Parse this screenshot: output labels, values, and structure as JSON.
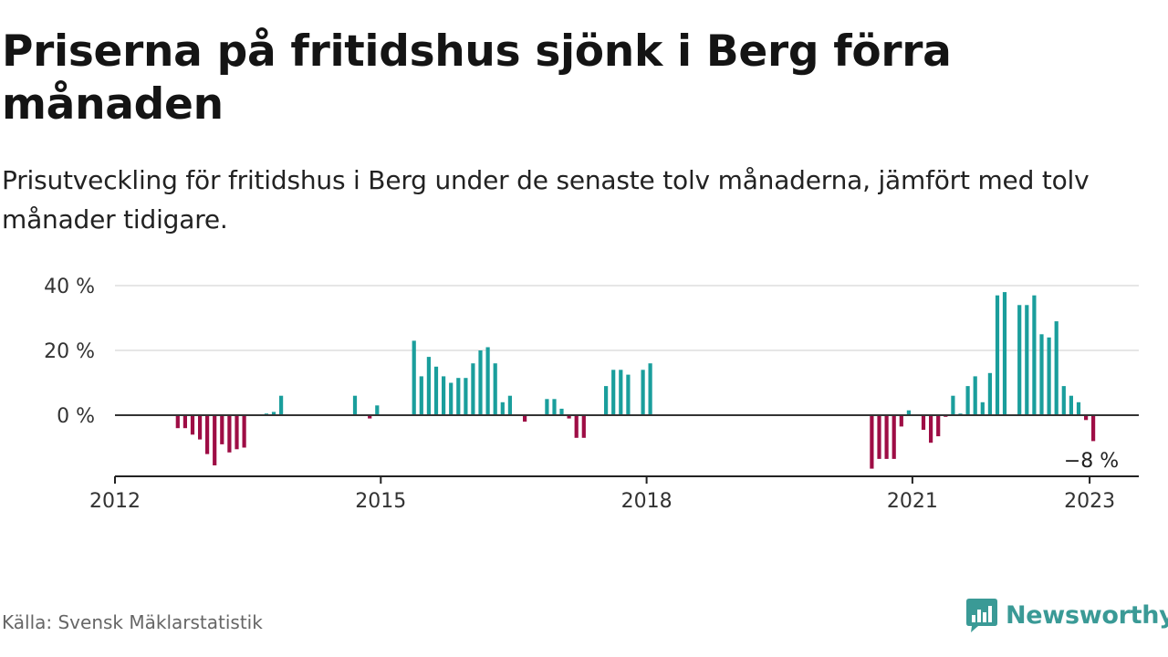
{
  "title": "Priserna på fritidshus sjönk i Berg förra månaden",
  "subtitle": "Prisutveckling för fritidshus i Berg under de senaste tolv månaderna, jämfört med tolv månader tidigare.",
  "source": "Källa: Svensk Mäklarstatistik",
  "brand": "Newsworthy",
  "brand_icon": "newsworthy-logo-icon",
  "colors": {
    "positive": "#1a9e9c",
    "negative": "#9e0d45",
    "grid": "#dddddd",
    "axis": "#222222",
    "brand": "#3a9a96"
  },
  "chart_data": {
    "type": "bar",
    "x_unit": "month",
    "y_unit": "%",
    "ylim": [
      -19,
      40
    ],
    "yticks": [
      0,
      20,
      40
    ],
    "ytick_labels": [
      "0 %",
      "20 %",
      "40 %"
    ],
    "xlim": [
      "2012-01",
      "2023-06"
    ],
    "xticks": [
      "2012-01",
      "2015-01",
      "2018-01",
      "2021-01",
      "2023-01"
    ],
    "xtick_labels": [
      "2012",
      "2015",
      "2018",
      "2021",
      "2023"
    ],
    "grid": true,
    "last_value_label": "−8 %",
    "x": [
      "2012-09",
      "2012-10",
      "2012-11",
      "2012-12",
      "2013-01",
      "2013-02",
      "2013-03",
      "2013-04",
      "2013-05",
      "2013-06",
      "2013-09",
      "2013-10",
      "2013-11",
      "2014-09",
      "2014-11",
      "2014-12",
      "2015-05",
      "2015-06",
      "2015-07",
      "2015-08",
      "2015-09",
      "2015-10",
      "2015-11",
      "2015-12",
      "2016-01",
      "2016-02",
      "2016-03",
      "2016-04",
      "2016-05",
      "2016-06",
      "2016-08",
      "2016-11",
      "2016-12",
      "2017-01",
      "2017-02",
      "2017-03",
      "2017-04",
      "2017-07",
      "2017-08",
      "2017-09",
      "2017-10",
      "2017-12",
      "2018-01",
      "2020-07",
      "2020-08",
      "2020-09",
      "2020-10",
      "2020-11",
      "2020-12",
      "2021-02",
      "2021-03",
      "2021-04",
      "2021-05",
      "2021-06",
      "2021-07",
      "2021-08",
      "2021-09",
      "2021-10",
      "2021-11",
      "2021-12",
      "2022-01",
      "2022-03",
      "2022-04",
      "2022-05",
      "2022-06",
      "2022-07",
      "2022-08",
      "2022-09",
      "2022-10",
      "2022-11",
      "2022-12",
      "2023-01"
    ],
    "values": [
      -4,
      -4,
      -6,
      -7.5,
      -12,
      -15.5,
      -9,
      -11.5,
      -10.5,
      -10,
      0.5,
      1,
      6,
      6,
      -1,
      3,
      23,
      12,
      18,
      15,
      12,
      10,
      11.5,
      11.5,
      16,
      20,
      21,
      16,
      4,
      6,
      -2,
      5,
      5,
      2,
      -1,
      -7,
      -7,
      9,
      14,
      14,
      12.5,
      14,
      16,
      -16.5,
      -13.5,
      -13.5,
      -13.5,
      -3.5,
      1.5,
      -4.5,
      -8.5,
      -6.5,
      -0.5,
      6,
      0.5,
      9,
      12,
      4,
      13,
      37,
      38,
      34,
      34,
      37,
      25,
      24,
      29,
      9,
      6,
      4,
      -1.5,
      -8
    ]
  }
}
